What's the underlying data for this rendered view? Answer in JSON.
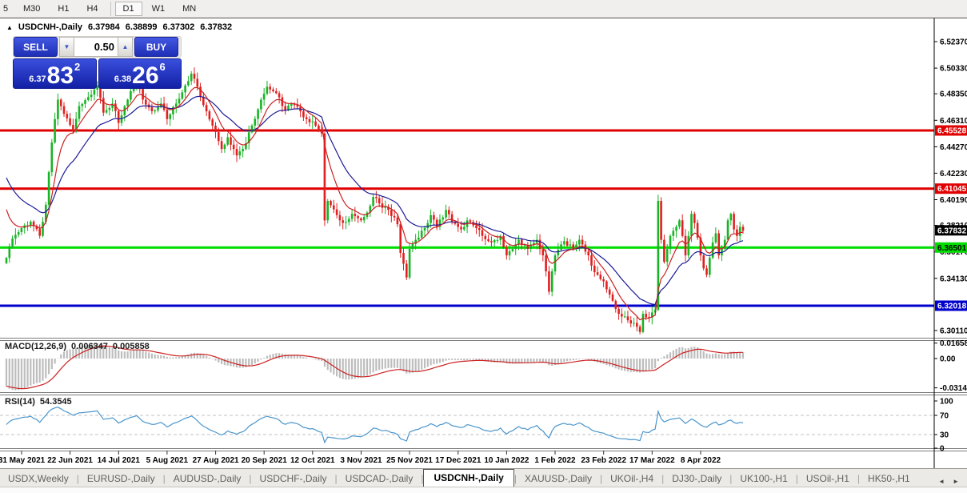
{
  "toolbar": {
    "buttons": [
      "5",
      "M30",
      "H1",
      "H4",
      "D1",
      "W1",
      "MN"
    ],
    "active": "D1"
  },
  "chart": {
    "title": {
      "collapse_icon": "▲",
      "symbol": "USDCNH-,Daily",
      "open": "6.37984",
      "high": "6.38899",
      "low": "6.37302",
      "close": "6.37832"
    },
    "trade_panel": {
      "sell_label": "SELL",
      "buy_label": "BUY",
      "volume": "0.50",
      "spinner_down_icon": "▼",
      "spinner_up_icon": "▲",
      "sell_price": {
        "prefix": "6.37",
        "big": "83",
        "sup": "2"
      },
      "buy_price": {
        "prefix": "6.38",
        "big": "26",
        "sup": "6"
      }
    }
  },
  "chart_data": {
    "type": "candlestick",
    "symbol": "USDCNH-",
    "timeframe": "Daily",
    "ohlc_last": {
      "open": 6.37984,
      "high": 6.38899,
      "low": 6.37302,
      "close": 6.37832
    },
    "current_price": "6.37832",
    "ylim": [
      6.2956,
      6.5416
    ],
    "price_axis_ticks": [
      "6.52370",
      "6.50330",
      "6.48350",
      "6.46310",
      "6.44270",
      "6.42230",
      "6.40190",
      "6.38210",
      "6.36170",
      "6.34130",
      "6.30110"
    ],
    "x_labels": [
      "31 May 2021",
      "22 Jun 2021",
      "14 Jul 2021",
      "5 Aug 2021",
      "27 Aug 2021",
      "20 Sep 2021",
      "12 Oct 2021",
      "3 Nov 2021",
      "25 Nov 2021",
      "17 Dec 2021",
      "10 Jan 2022",
      "1 Feb 2022",
      "23 Feb 2022",
      "17 Mar 2022",
      "8 Apr 2022"
    ],
    "hlines": [
      {
        "value": "6.45528",
        "color": "#e00000",
        "text_color": "#ffffff",
        "width": 3
      },
      {
        "value": "6.41045",
        "color": "#e00000",
        "text_color": "#ffffff",
        "width": 3
      },
      {
        "value": "6.36501",
        "color": "#00dd00",
        "text_color": "#000000",
        "width": 3
      },
      {
        "value": "6.32018",
        "color": "#0000cc",
        "text_color": "#ffffff",
        "width": 3
      }
    ],
    "colors": {
      "candle_up": "#18b425",
      "candle_down": "#e02020",
      "ma_fast": "#cc2222",
      "ma_slow": "#1c1c96",
      "axis_text": "#000000",
      "current_badge_bg": "#000000"
    },
    "candles": {
      "count": 244,
      "anchors": [
        [
          0,
          6.357
        ],
        [
          2,
          6.372
        ],
        [
          5,
          6.38
        ],
        [
          8,
          6.385
        ],
        [
          11,
          6.374
        ],
        [
          13,
          6.398
        ],
        [
          15,
          6.446
        ],
        [
          17,
          6.479
        ],
        [
          19,
          6.468
        ],
        [
          22,
          6.455
        ],
        [
          24,
          6.474
        ],
        [
          27,
          6.481
        ],
        [
          30,
          6.49
        ],
        [
          32,
          6.469
        ],
        [
          35,
          6.476
        ],
        [
          37,
          6.461
        ],
        [
          40,
          6.479
        ],
        [
          43,
          6.494
        ],
        [
          45,
          6.479
        ],
        [
          48,
          6.47
        ],
        [
          51,
          6.476
        ],
        [
          53,
          6.464
        ],
        [
          56,
          6.476
        ],
        [
          59,
          6.49
        ],
        [
          61,
          6.499
        ],
        [
          63,
          6.489
        ],
        [
          66,
          6.47
        ],
        [
          69,
          6.454
        ],
        [
          71,
          6.441
        ],
        [
          73,
          6.45
        ],
        [
          76,
          6.436
        ],
        [
          78,
          6.441
        ],
        [
          81,
          6.459
        ],
        [
          84,
          6.479
        ],
        [
          86,
          6.489
        ],
        [
          89,
          6.484
        ],
        [
          92,
          6.471
        ],
        [
          94,
          6.476
        ],
        [
          97,
          6.47
        ],
        [
          99,
          6.464
        ],
        [
          102,
          6.459
        ],
        [
          104,
          6.453
        ],
        [
          105,
          6.386
        ],
        [
          106,
          6.401
        ],
        [
          109,
          6.39
        ],
        [
          111,
          6.384
        ],
        [
          114,
          6.391
        ],
        [
          117,
          6.386
        ],
        [
          119,
          6.392
        ],
        [
          121,
          6.404
        ],
        [
          123,
          6.399
        ],
        [
          126,
          6.394
        ],
        [
          129,
          6.383
        ],
        [
          130,
          6.361
        ],
        [
          132,
          6.342
        ],
        [
          133,
          6.364
        ],
        [
          135,
          6.371
        ],
        [
          138,
          6.38
        ],
        [
          140,
          6.39
        ],
        [
          142,
          6.381
        ],
        [
          145,
          6.394
        ],
        [
          147,
          6.385
        ],
        [
          150,
          6.379
        ],
        [
          152,
          6.386
        ],
        [
          155,
          6.38
        ],
        [
          157,
          6.374
        ],
        [
          160,
          6.369
        ],
        [
          163,
          6.374
        ],
        [
          165,
          6.359
        ],
        [
          167,
          6.364
        ],
        [
          169,
          6.371
        ],
        [
          172,
          6.364
        ],
        [
          175,
          6.371
        ],
        [
          177,
          6.359
        ],
        [
          179,
          6.331
        ],
        [
          181,
          6.359
        ],
        [
          184,
          6.37
        ],
        [
          187,
          6.364
        ],
        [
          189,
          6.371
        ],
        [
          192,
          6.359
        ],
        [
          194,
          6.346
        ],
        [
          197,
          6.339
        ],
        [
          200,
          6.324
        ],
        [
          202,
          6.314
        ],
        [
          205,
          6.309
        ],
        [
          208,
          6.304
        ],
        [
          209,
          6.3
        ],
        [
          210,
          6.314
        ],
        [
          212,
          6.311
        ],
        [
          214,
          6.317
        ],
        [
          215,
          6.401
        ],
        [
          216,
          6.371
        ],
        [
          217,
          6.354
        ],
        [
          218,
          6.364
        ],
        [
          219,
          6.374
        ],
        [
          221,
          6.381
        ],
        [
          222,
          6.386
        ],
        [
          223,
          6.374
        ],
        [
          224,
          6.359
        ],
        [
          225,
          6.374
        ],
        [
          226,
          6.391
        ],
        [
          227,
          6.384
        ],
        [
          229,
          6.359
        ],
        [
          230,
          6.349
        ],
        [
          231,
          6.344
        ],
        [
          233,
          6.369
        ],
        [
          234,
          6.376
        ],
        [
          235,
          6.359
        ],
        [
          237,
          6.371
        ],
        [
          238,
          6.386
        ],
        [
          239,
          6.391
        ],
        [
          240,
          6.379
        ],
        [
          241,
          6.374
        ],
        [
          242,
          6.381
        ],
        [
          243,
          6.378
        ]
      ]
    },
    "macd": {
      "label": "MACD(12,26,9)",
      "value_main": "0.006347",
      "value_signal": "0.005858",
      "axis_ticks": [
        "0.016586",
        "0.00",
        "-0.031421"
      ],
      "hist_color": "#bdbdbd",
      "signal_color": "#cc2222"
    },
    "rsi": {
      "label": "RSI(14)",
      "value": "54.3545",
      "axis_ticks": [
        "100",
        "70",
        "30",
        "0"
      ],
      "levels": [
        70,
        30
      ],
      "color": "#4a96cc",
      "level_color": "#c0c0c0"
    }
  },
  "tabs": {
    "items": [
      "USDX,Weekly",
      "EURUSD-,Daily",
      "AUDUSD-,Daily",
      "USDCHF-,Daily",
      "USDCAD-,Daily",
      "USDCNH-,Daily",
      "XAUUSD-,Daily",
      "UKOil-,H4",
      "DJ30-,Daily",
      "UK100-,H1",
      "USOil-,H1",
      "HK50-,H1"
    ],
    "active": "USDCNH-,Daily",
    "scroll_left": "◄",
    "scroll_right": "►"
  }
}
